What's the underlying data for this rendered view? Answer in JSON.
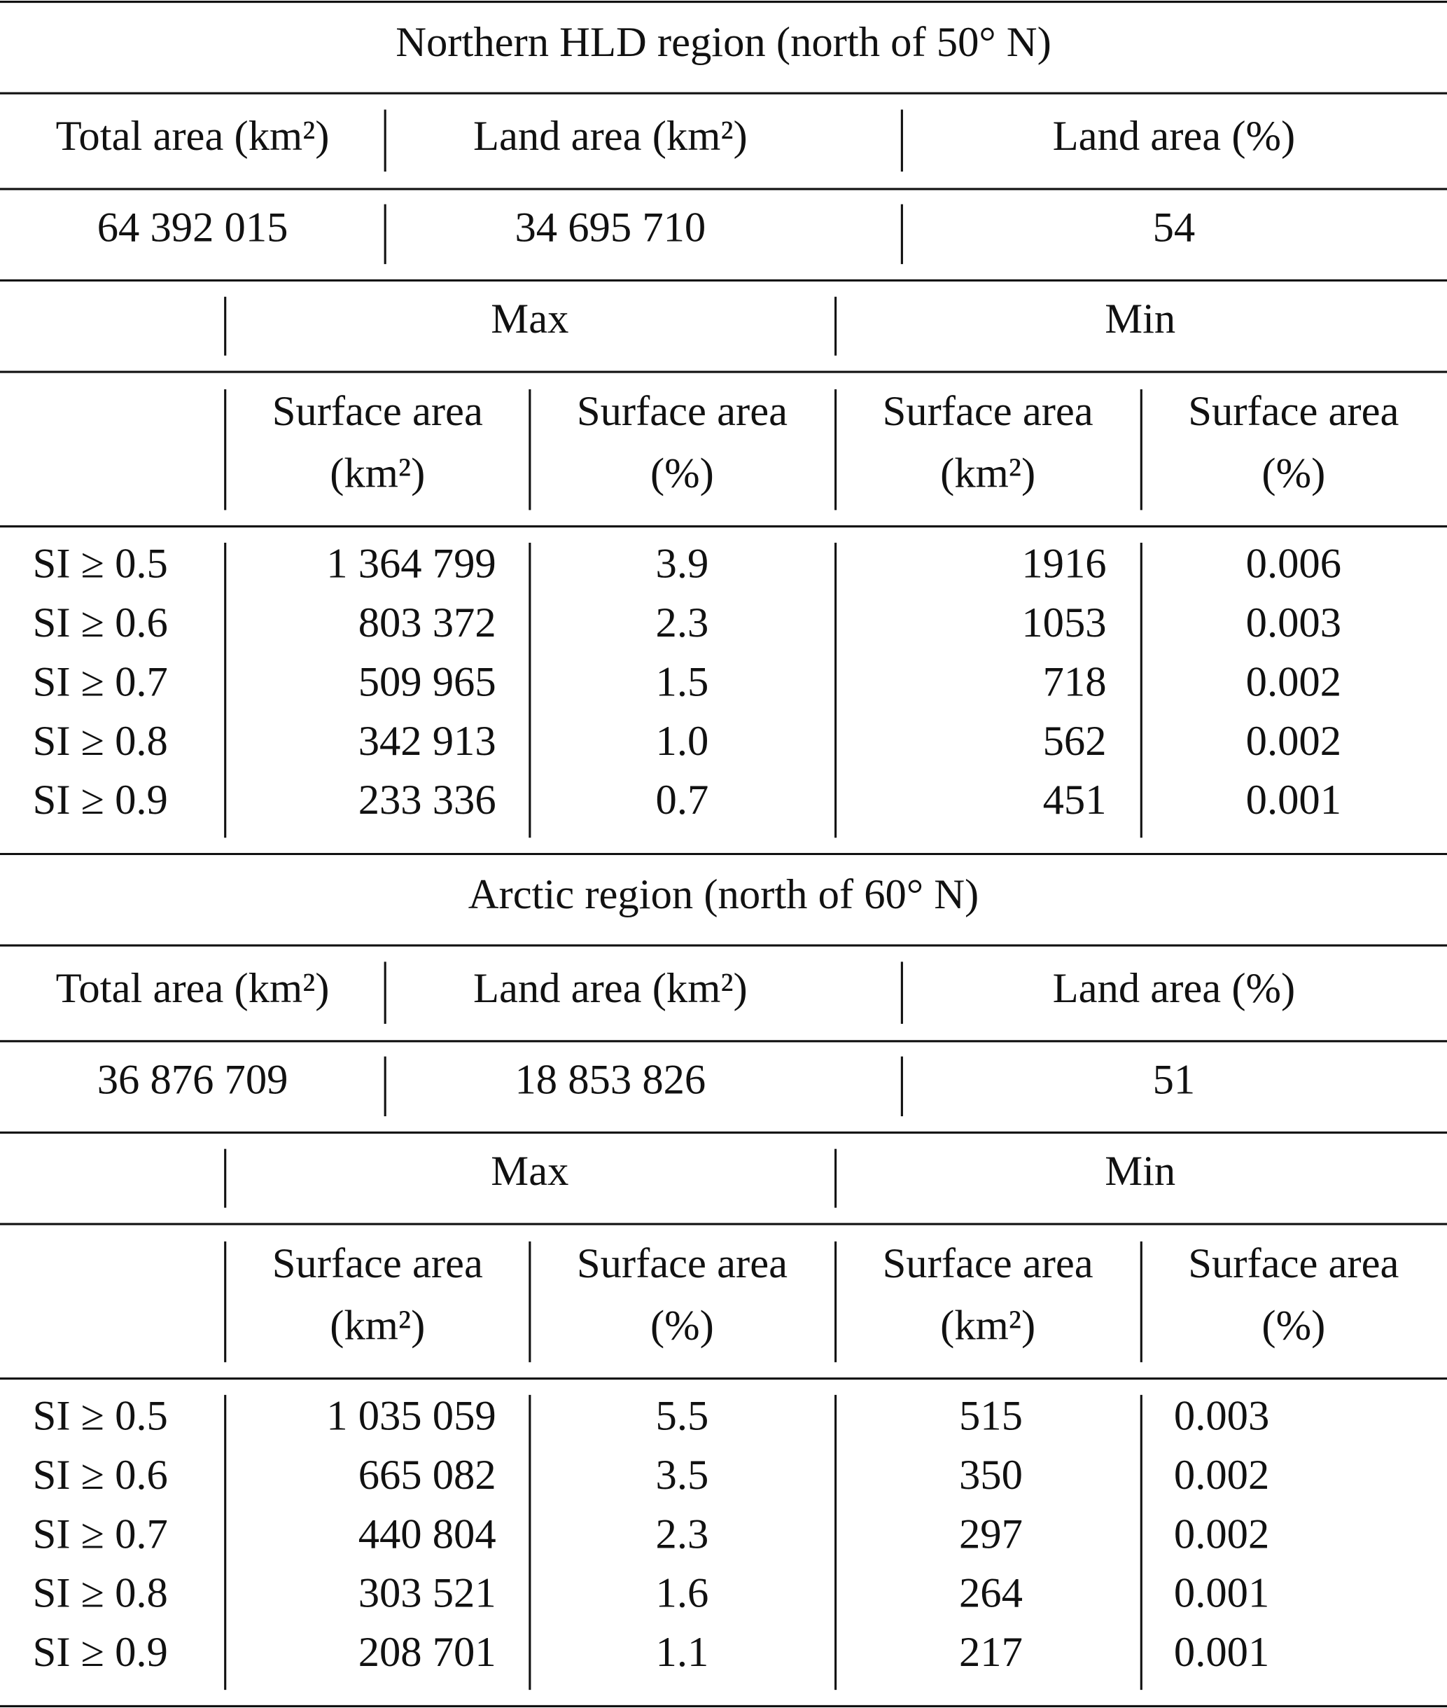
{
  "sections": [
    {
      "title": "Northern HLD region (north of 50° N)",
      "summary_header": [
        "Total area (km²)",
        "Land area (km²)",
        "Land area (%)"
      ],
      "summary_values": [
        "64 392 015",
        "34 695 710",
        "54"
      ],
      "group_header": [
        "Max",
        "Min"
      ],
      "column_header": [
        [
          "Surface area",
          "(km²)"
        ],
        [
          "Surface area",
          "(%)"
        ],
        [
          "Surface area",
          "(km²)"
        ],
        [
          "Surface area",
          "(%)"
        ]
      ],
      "rows": [
        [
          "SI ≥ 0.5",
          "1 364 799",
          "3.9",
          "1916",
          "0.006"
        ],
        [
          "SI ≥ 0.6",
          "803 372",
          "2.3",
          "1053",
          "0.003"
        ],
        [
          "SI ≥ 0.7",
          "509 965",
          "1.5",
          "718",
          "0.002"
        ],
        [
          "SI ≥ 0.8",
          "342 913",
          "1.0",
          "562",
          "0.002"
        ],
        [
          "SI ≥ 0.9",
          "233 336",
          "0.7",
          "451",
          "0.001"
        ]
      ]
    },
    {
      "title": "Arctic region (north of 60° N)",
      "summary_header": [
        "Total area (km²)",
        "Land area (km²)",
        "Land area (%)"
      ],
      "summary_values": [
        "36 876 709",
        "18 853 826",
        "51"
      ],
      "group_header": [
        "Max",
        "Min"
      ],
      "column_header": [
        [
          "Surface area",
          "(km²)"
        ],
        [
          "Surface area",
          "(%)"
        ],
        [
          "Surface area",
          "(km²)"
        ],
        [
          "Surface area",
          "(%)"
        ]
      ],
      "rows": [
        [
          "SI ≥ 0.5",
          "1 035 059",
          "5.5",
          "515",
          "0.003"
        ],
        [
          "SI ≥ 0.6",
          "665 082",
          "3.5",
          "350",
          "0.002"
        ],
        [
          "SI ≥ 0.7",
          "440 804",
          "2.3",
          "297",
          "0.002"
        ],
        [
          "SI ≥ 0.8",
          "303 521",
          "1.6",
          "264",
          "0.001"
        ],
        [
          "SI ≥ 0.9",
          "208 701",
          "1.1",
          "217",
          "0.001"
        ]
      ]
    }
  ]
}
